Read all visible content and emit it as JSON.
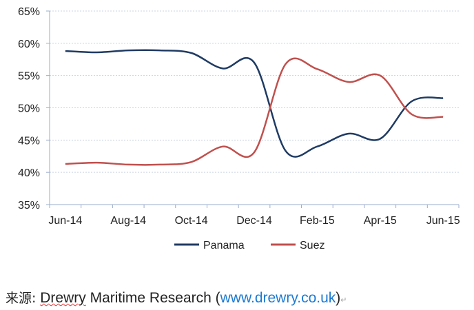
{
  "chart_data": {
    "type": "line",
    "categories": [
      "Jun-14",
      "Jul-14",
      "Aug-14",
      "Sep-14",
      "Oct-14",
      "Nov-14",
      "Dec-14",
      "Jan-15",
      "Feb-15",
      "Mar-15",
      "Apr-15",
      "May-15",
      "Jun-15"
    ],
    "tick_labels": [
      "Jun-14",
      "Aug-14",
      "Oct-14",
      "Dec-14",
      "Feb-15",
      "Apr-15",
      "Jun-15"
    ],
    "y_ticks": [
      "35%",
      "40%",
      "45%",
      "50%",
      "55%",
      "60%",
      "65%"
    ],
    "ylim": [
      35,
      65
    ],
    "grid": true,
    "legend_position": "bottom",
    "series": [
      {
        "name": "Panama",
        "color": "#1f3b63",
        "values": [
          58.8,
          58.6,
          58.9,
          58.9,
          58.5,
          56.1,
          57.0,
          43.3,
          44.0,
          46.0,
          45.2,
          51.0,
          51.5
        ]
      },
      {
        "name": "Suez",
        "color": "#c0504d",
        "values": [
          41.3,
          41.5,
          41.2,
          41.2,
          41.6,
          44.0,
          43.1,
          56.8,
          56.0,
          54.0,
          55.0,
          49.0,
          48.6
        ]
      }
    ]
  },
  "source": {
    "label": "来源:",
    "org": "Drewry",
    "rest": " Maritime Research (",
    "link": "www.drewry.co.uk",
    "close": ")",
    "mark": "↵"
  }
}
